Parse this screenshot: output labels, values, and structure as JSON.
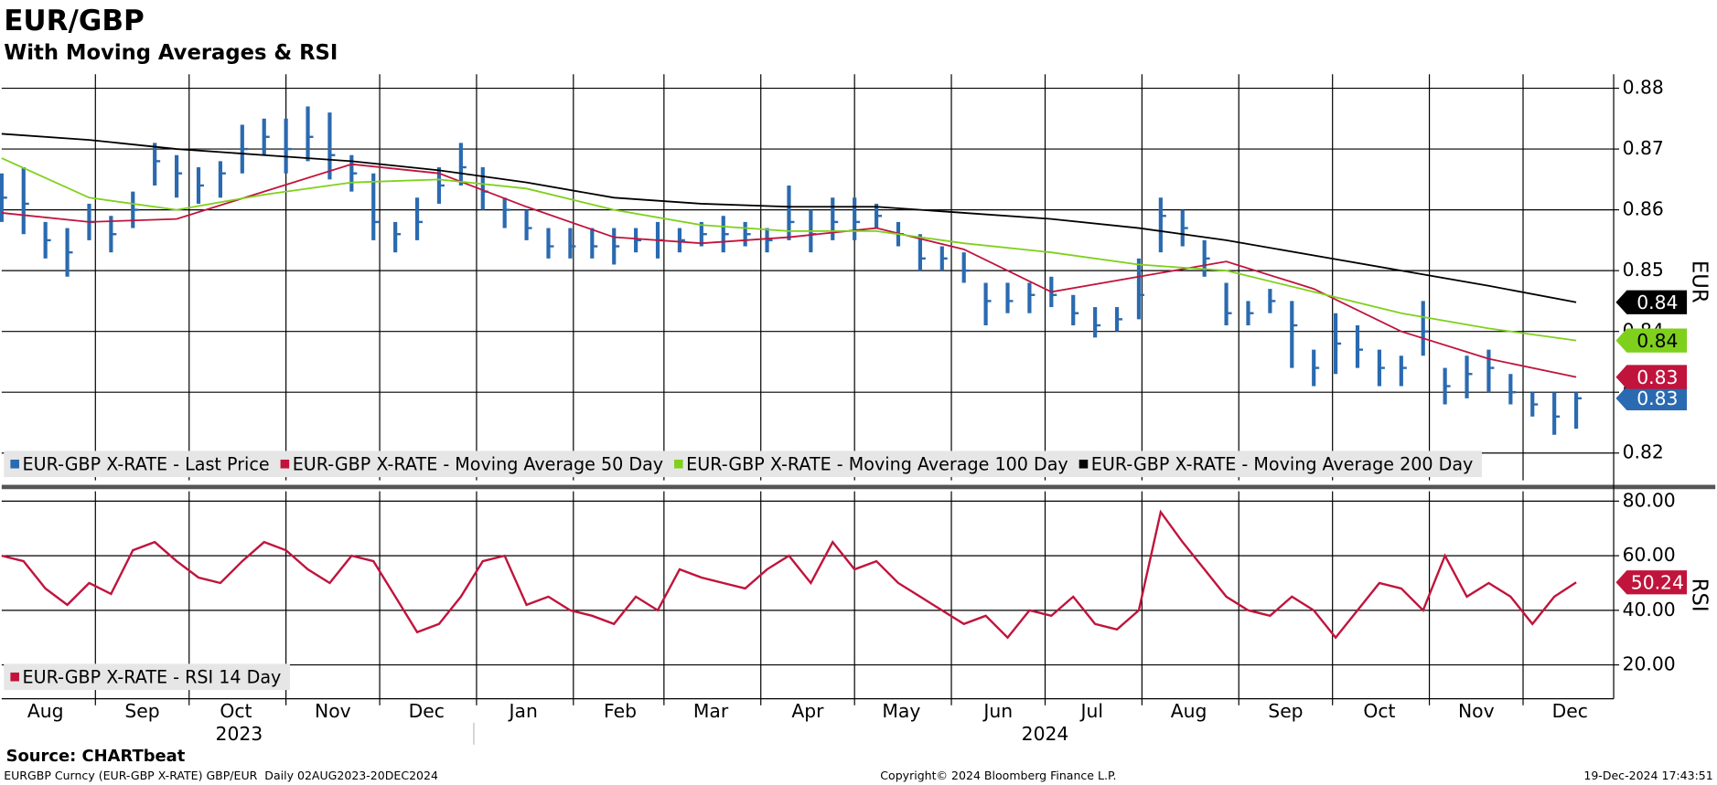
{
  "chart_data": [
    {
      "type": "ohlc",
      "title": "EUR/GBP",
      "subtitle": "With Moving Averages & RSI",
      "y_axis_label": "EUR",
      "ylim": [
        0.8155,
        0.8823
      ],
      "yticks": [
        0.82,
        0.83,
        0.84,
        0.85,
        0.86,
        0.87,
        0.88
      ],
      "grid": true,
      "series": [
        {
          "name": "EUR-GBP X-RATE - Last Price",
          "color": "#2a6ab0",
          "label_color": "#ffffff",
          "last_value_label": "0.83",
          "x": [
            0,
            7,
            14,
            21,
            28,
            35,
            42,
            49,
            56,
            63,
            70,
            77,
            84,
            91,
            98,
            105,
            112,
            119,
            126,
            133,
            140,
            147,
            154,
            161,
            168,
            175,
            182,
            189,
            196,
            203,
            210,
            217,
            224,
            231,
            238,
            245,
            252,
            259,
            266,
            273,
            280,
            287,
            294,
            301,
            308,
            315,
            322,
            329,
            336,
            343,
            350,
            357,
            364,
            371,
            378,
            385,
            392,
            399,
            406,
            413,
            420,
            427,
            434,
            441,
            448,
            455,
            462,
            469,
            476,
            483,
            490,
            497,
            504
          ],
          "values": [
            0.862,
            0.861,
            0.855,
            0.853,
            0.858,
            0.856,
            0.86,
            0.868,
            0.866,
            0.864,
            0.866,
            0.87,
            0.872,
            0.87,
            0.872,
            0.869,
            0.866,
            0.858,
            0.856,
            0.858,
            0.864,
            0.867,
            0.863,
            0.86,
            0.857,
            0.854,
            0.854,
            0.854,
            0.854,
            0.855,
            0.855,
            0.855,
            0.856,
            0.856,
            0.856,
            0.855,
            0.858,
            0.856,
            0.858,
            0.858,
            0.859,
            0.856,
            0.852,
            0.852,
            0.85,
            0.845,
            0.845,
            0.846,
            0.846,
            0.843,
            0.841,
            0.842,
            0.846,
            0.859,
            0.857,
            0.852,
            0.843,
            0.843,
            0.845,
            0.841,
            0.834,
            0.838,
            0.837,
            0.834,
            0.834,
            0.84,
            0.831,
            0.833,
            0.834,
            0.83,
            0.828,
            0.826,
            0.829
          ],
          "high": [
            0.866,
            0.867,
            0.858,
            0.857,
            0.861,
            0.859,
            0.863,
            0.871,
            0.869,
            0.867,
            0.868,
            0.874,
            0.875,
            0.875,
            0.877,
            0.876,
            0.869,
            0.866,
            0.858,
            0.862,
            0.867,
            0.871,
            0.867,
            0.862,
            0.86,
            0.857,
            0.857,
            0.857,
            0.857,
            0.857,
            0.858,
            0.857,
            0.858,
            0.859,
            0.858,
            0.857,
            0.864,
            0.86,
            0.862,
            0.862,
            0.861,
            0.858,
            0.856,
            0.854,
            0.853,
            0.848,
            0.848,
            0.848,
            0.849,
            0.846,
            0.844,
            0.844,
            0.852,
            0.862,
            0.86,
            0.855,
            0.848,
            0.845,
            0.847,
            0.845,
            0.837,
            0.843,
            0.841,
            0.837,
            0.836,
            0.845,
            0.834,
            0.836,
            0.837,
            0.833,
            0.83,
            0.83,
            0.83
          ],
          "low": [
            0.858,
            0.856,
            0.852,
            0.849,
            0.855,
            0.853,
            0.857,
            0.864,
            0.862,
            0.861,
            0.862,
            0.866,
            0.869,
            0.866,
            0.868,
            0.865,
            0.863,
            0.855,
            0.853,
            0.855,
            0.861,
            0.864,
            0.86,
            0.857,
            0.855,
            0.852,
            0.852,
            0.852,
            0.851,
            0.853,
            0.852,
            0.853,
            0.854,
            0.853,
            0.854,
            0.853,
            0.855,
            0.853,
            0.855,
            0.855,
            0.857,
            0.854,
            0.85,
            0.85,
            0.848,
            0.841,
            0.843,
            0.843,
            0.844,
            0.841,
            0.839,
            0.84,
            0.842,
            0.853,
            0.854,
            0.849,
            0.841,
            0.841,
            0.843,
            0.834,
            0.831,
            0.833,
            0.834,
            0.831,
            0.831,
            0.836,
            0.828,
            0.829,
            0.83,
            0.828,
            0.826,
            0.823,
            0.824
          ]
        },
        {
          "name": "EUR-GBP X-RATE - Moving Average 50 Day",
          "color": "#c0143c",
          "label_color": "#ffffff",
          "last_value_label": "0.83",
          "x": [
            0,
            28,
            56,
            84,
            112,
            140,
            168,
            196,
            224,
            252,
            280,
            308,
            336,
            364,
            392,
            420,
            448,
            476,
            504
          ],
          "values": [
            0.8595,
            0.858,
            0.8585,
            0.863,
            0.8675,
            0.866,
            0.8605,
            0.8555,
            0.8545,
            0.8555,
            0.857,
            0.8535,
            0.8465,
            0.849,
            0.8515,
            0.847,
            0.84,
            0.8355,
            0.8325
          ]
        },
        {
          "name": "EUR-GBP X-RATE - Moving Average 100 Day",
          "color": "#7fd01c",
          "label_color": "#000000",
          "last_value_label": "0.84",
          "x": [
            0,
            28,
            56,
            84,
            112,
            140,
            168,
            196,
            224,
            252,
            280,
            308,
            336,
            364,
            392,
            420,
            448,
            476,
            504
          ],
          "values": [
            0.8685,
            0.862,
            0.86,
            0.8625,
            0.8645,
            0.865,
            0.8635,
            0.86,
            0.8575,
            0.8565,
            0.8565,
            0.8545,
            0.853,
            0.851,
            0.85,
            0.8465,
            0.843,
            0.8405,
            0.8385
          ]
        },
        {
          "name": "EUR-GBP X-RATE - Moving Average 200 Day",
          "color": "#000000",
          "label_color": "#ffffff",
          "last_value_label": "0.84",
          "x": [
            0,
            28,
            56,
            84,
            112,
            140,
            168,
            196,
            224,
            252,
            280,
            308,
            336,
            364,
            392,
            420,
            448,
            476,
            504
          ],
          "values": [
            0.8725,
            0.8715,
            0.87,
            0.869,
            0.868,
            0.8665,
            0.8645,
            0.862,
            0.861,
            0.8605,
            0.8605,
            0.8595,
            0.8585,
            0.857,
            0.855,
            0.8525,
            0.85,
            0.8475,
            0.8448
          ]
        }
      ]
    },
    {
      "type": "line",
      "y_axis_label": "RSI",
      "ylim": [
        7.6,
        83.6
      ],
      "yticks": [
        {
          "value": 20,
          "label": "20.00"
        },
        {
          "value": 40,
          "label": "40.00"
        },
        {
          "value": 60,
          "label": "60.00"
        },
        {
          "value": 80,
          "label": "80.00"
        }
      ],
      "grid": true,
      "xlim": [
        0,
        516
      ],
      "xticks": [
        {
          "value": -1,
          "label": "Aug"
        },
        {
          "value": 30,
          "label": "Sep"
        },
        {
          "value": 60,
          "label": "Oct"
        },
        {
          "value": 91,
          "label": "Nov"
        },
        {
          "value": 121,
          "label": "Dec"
        },
        {
          "value": 152,
          "label": "Jan"
        },
        {
          "value": 183,
          "label": "Feb"
        },
        {
          "value": 212,
          "label": "Mar"
        },
        {
          "value": 243,
          "label": "Apr"
        },
        {
          "value": 273,
          "label": "May"
        },
        {
          "value": 304,
          "label": "Jun"
        },
        {
          "value": 334,
          "label": "Jul"
        },
        {
          "value": 365,
          "label": "Aug"
        },
        {
          "value": 396,
          "label": "Sep"
        },
        {
          "value": 426,
          "label": "Oct"
        },
        {
          "value": 457,
          "label": "Nov"
        },
        {
          "value": 487,
          "label": "Dec"
        }
      ],
      "year_ticks": [
        {
          "value": -213,
          "label": "2023"
        },
        {
          "value": 152,
          "label": "2024"
        }
      ],
      "series": [
        {
          "name": "EUR-GBP X-RATE - RSI 14 Day",
          "color": "#c0143c",
          "label_color": "#ffffff",
          "x": [
            0,
            7,
            14,
            21,
            28,
            35,
            42,
            49,
            56,
            63,
            70,
            77,
            84,
            91,
            98,
            105,
            112,
            119,
            126,
            133,
            140,
            147,
            154,
            161,
            168,
            175,
            182,
            189,
            196,
            203,
            210,
            217,
            224,
            231,
            238,
            245,
            252,
            259,
            266,
            273,
            280,
            287,
            294,
            301,
            308,
            315,
            322,
            329,
            336,
            343,
            350,
            357,
            364,
            371,
            378,
            385,
            392,
            399,
            406,
            413,
            420,
            427,
            434,
            441,
            448,
            455,
            462,
            469,
            476,
            483,
            490,
            497,
            504
          ],
          "values": [
            60,
            58,
            48,
            42,
            50,
            46,
            62,
            65,
            58,
            52,
            50,
            58,
            65,
            62,
            55,
            50,
            60,
            58,
            45,
            32,
            35,
            45,
            58,
            60,
            42,
            45,
            40,
            38,
            35,
            45,
            40,
            55,
            52,
            50,
            48,
            55,
            60,
            50,
            65,
            55,
            58,
            50,
            45,
            40,
            35,
            38,
            30,
            40,
            38,
            45,
            35,
            33,
            40,
            76,
            65,
            55,
            45,
            40,
            38,
            45,
            40,
            30,
            40,
            50,
            48,
            40,
            60,
            45,
            50,
            45,
            35,
            45,
            50.24
          ]
        }
      ]
    }
  ],
  "footer": {
    "source": "Source: CHARTbeat",
    "left": "EURGBP Curncy (EUR-GBP X-RATE) GBP/EUR  Daily 02AUG2023-20DEC2024",
    "center": "Copyright© 2024 Bloomberg Finance L.P.",
    "right": "19-Dec-2024 17:43:51"
  }
}
